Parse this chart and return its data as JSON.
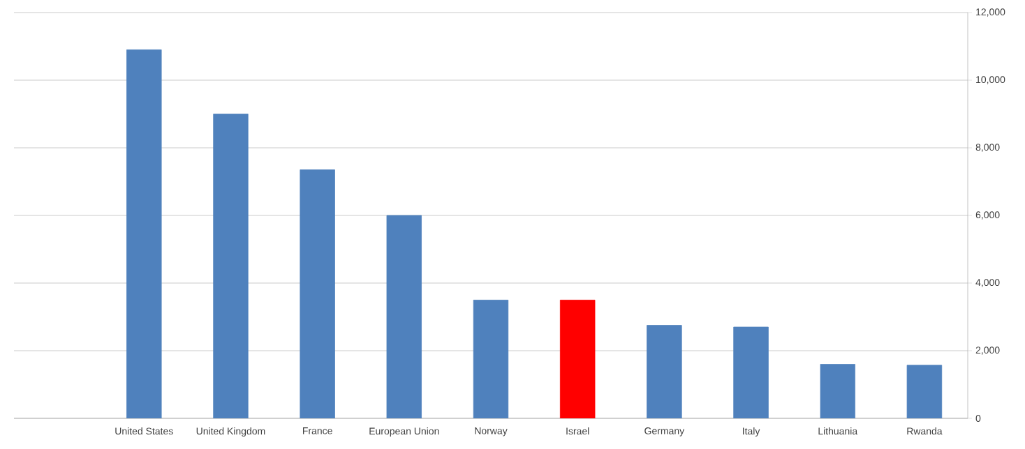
{
  "chart_data": {
    "type": "bar",
    "categories": [
      null,
      "United States",
      "United Kingdom",
      "France",
      "European Union",
      "Norway",
      "Israel",
      "Germany",
      "Italy",
      "Lithuania",
      "Rwanda"
    ],
    "values": [
      null,
      10900,
      9000,
      7350,
      6000,
      3500,
      3500,
      2750,
      2700,
      1600,
      1570
    ],
    "colors": [
      "#4f81bd",
      "#4f81bd",
      "#4f81bd",
      "#4f81bd",
      "#4f81bd",
      "#4f81bd",
      "#ff0000",
      "#4f81bd",
      "#4f81bd",
      "#4f81bd",
      "#4f81bd"
    ],
    "ylim": [
      0,
      12000
    ],
    "yticks": [
      {
        "value": 0,
        "label": "0"
      },
      {
        "value": 2000,
        "label": "2,000"
      },
      {
        "value": 4000,
        "label": "4,000"
      },
      {
        "value": 6000,
        "label": "6,000"
      },
      {
        "value": 8000,
        "label": "8,000"
      },
      {
        "value": 10000,
        "label": "10,000"
      },
      {
        "value": 12000,
        "label": "12,000"
      }
    ],
    "grid": "y"
  }
}
